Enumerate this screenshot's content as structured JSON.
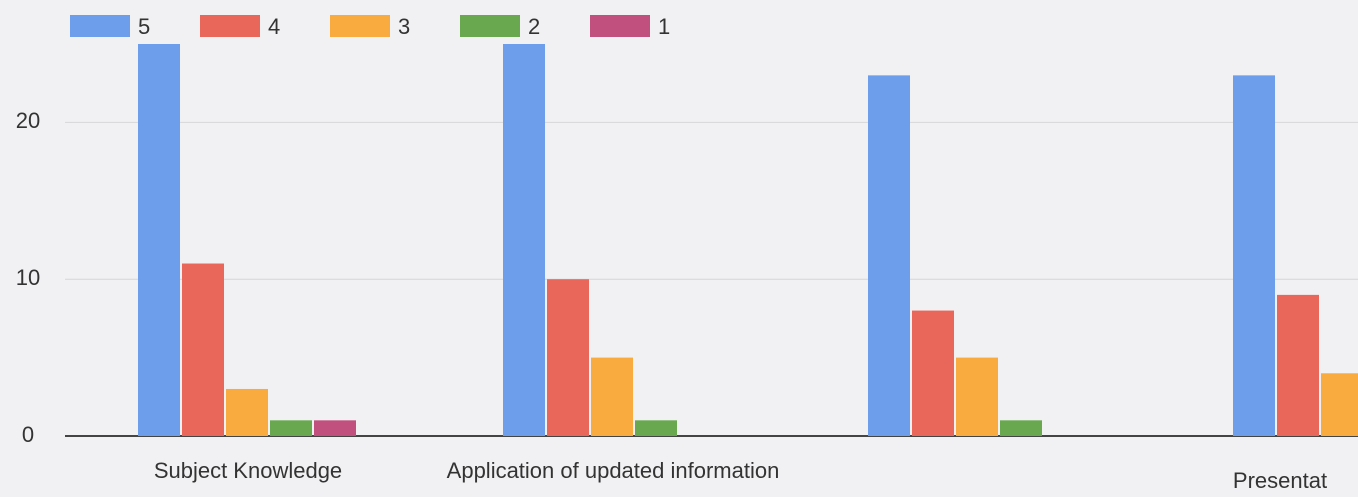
{
  "chart_data": {
    "type": "bar",
    "categories": [
      "Subject Knowledge",
      "Application of updated information",
      null,
      "Presentat"
    ],
    "series": [
      {
        "name": "5",
        "color": "#6d9eeb",
        "values": [
          25,
          25,
          23,
          23
        ]
      },
      {
        "name": "4",
        "color": "#e8675a",
        "values": [
          11,
          10,
          8,
          9
        ]
      },
      {
        "name": "3",
        "color": "#f9ab3f",
        "values": [
          3,
          5,
          5,
          4
        ]
      },
      {
        "name": "2",
        "color": "#6aa84f",
        "values": [
          1,
          1,
          1,
          null
        ]
      },
      {
        "name": "1",
        "color": "#c2507f",
        "values": [
          1,
          0,
          0,
          null
        ]
      }
    ],
    "ylim": [
      0,
      25
    ],
    "yticks": [
      0,
      10,
      20
    ],
    "grid": true,
    "legend": "top"
  }
}
